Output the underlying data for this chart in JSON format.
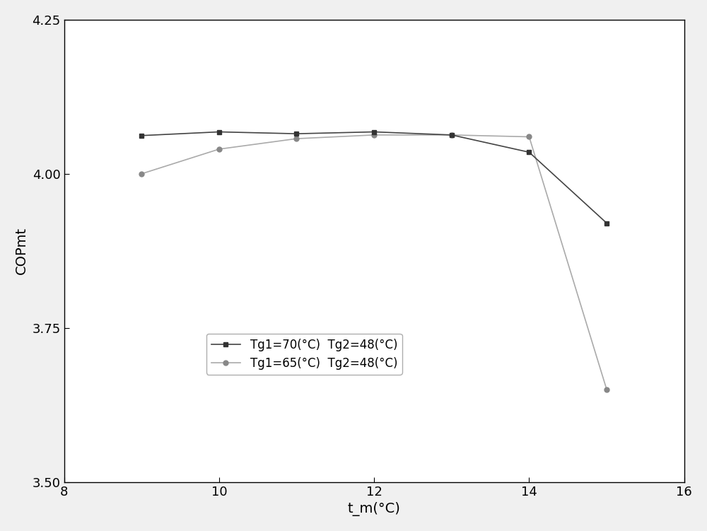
{
  "series1": {
    "label": "Tg1=70(°C)  Tg2=48(°C)",
    "x": [
      9,
      10,
      11,
      12,
      13,
      14,
      15
    ],
    "y": [
      4.062,
      4.068,
      4.065,
      4.068,
      4.063,
      4.035,
      3.92
    ],
    "color": "#444444",
    "marker": "s",
    "linestyle": "-",
    "linewidth": 1.2,
    "markersize": 5,
    "markerfacecolor": "#333333",
    "markeredgecolor": "#333333"
  },
  "series2": {
    "label": "Tg1=65(°C)  Tg2=48(°C)",
    "x": [
      9,
      10,
      11,
      12,
      13,
      14,
      15
    ],
    "y": [
      4.0,
      4.04,
      4.057,
      4.063,
      4.063,
      4.06,
      3.65
    ],
    "color": "#aaaaaa",
    "marker": "o",
    "linestyle": "-",
    "linewidth": 1.2,
    "markersize": 5,
    "markerfacecolor": "#888888",
    "markeredgecolor": "#888888"
  },
  "xlabel": "t_m(°C)",
  "ylabel": "COPmt",
  "xlim": [
    8,
    16
  ],
  "ylim": [
    3.5,
    4.25
  ],
  "xticks": [
    8,
    10,
    12,
    14,
    16
  ],
  "yticks": [
    3.5,
    3.75,
    4.0,
    4.25
  ],
  "background_color": "#f0f0f0",
  "figure_width": 10.0,
  "figure_height": 7.51
}
